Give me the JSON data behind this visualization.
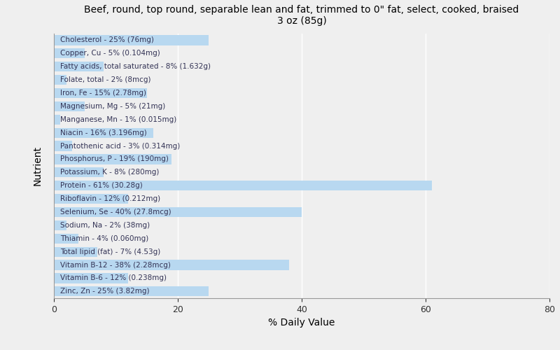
{
  "title": "Beef, round, top round, separable lean and fat, trimmed to 0\" fat, select, cooked, braised\n3 oz (85g)",
  "xlabel": "% Daily Value",
  "ylabel": "Nutrient",
  "xlim": [
    0,
    80
  ],
  "bar_color": "#b8d8f0",
  "background_color": "#efefef",
  "label_color": "#333355",
  "nutrients": [
    {
      "label": "Cholesterol - 25% (76mg)",
      "value": 25
    },
    {
      "label": "Copper, Cu - 5% (0.104mg)",
      "value": 5
    },
    {
      "label": "Fatty acids, total saturated - 8% (1.632g)",
      "value": 8
    },
    {
      "label": "Folate, total - 2% (8mcg)",
      "value": 2
    },
    {
      "label": "Iron, Fe - 15% (2.78mg)",
      "value": 15
    },
    {
      "label": "Magnesium, Mg - 5% (21mg)",
      "value": 5
    },
    {
      "label": "Manganese, Mn - 1% (0.015mg)",
      "value": 1
    },
    {
      "label": "Niacin - 16% (3.196mg)",
      "value": 16
    },
    {
      "label": "Pantothenic acid - 3% (0.314mg)",
      "value": 3
    },
    {
      "label": "Phosphorus, P - 19% (190mg)",
      "value": 19
    },
    {
      "label": "Potassium, K - 8% (280mg)",
      "value": 8
    },
    {
      "label": "Protein - 61% (30.28g)",
      "value": 61
    },
    {
      "label": "Riboflavin - 12% (0.212mg)",
      "value": 12
    },
    {
      "label": "Selenium, Se - 40% (27.8mcg)",
      "value": 40
    },
    {
      "label": "Sodium, Na - 2% (38mg)",
      "value": 2
    },
    {
      "label": "Thiamin - 4% (0.060mg)",
      "value": 4
    },
    {
      "label": "Total lipid (fat) - 7% (4.53g)",
      "value": 7
    },
    {
      "label": "Vitamin B-12 - 38% (2.28mcg)",
      "value": 38
    },
    {
      "label": "Vitamin B-6 - 12% (0.238mg)",
      "value": 12
    },
    {
      "label": "Zinc, Zn - 25% (3.82mg)",
      "value": 25
    }
  ]
}
